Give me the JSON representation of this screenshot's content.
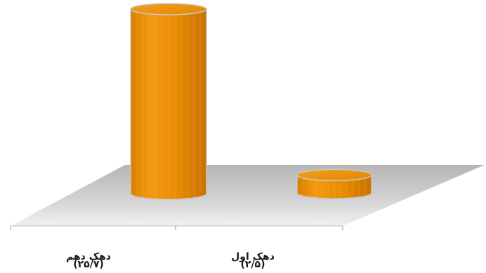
{
  "chart_data": {
    "type": "bar",
    "shape": "3d-cylinder",
    "categories": [
      "دهک دهم",
      "دهک اول"
    ],
    "value_labels": [
      "(۲۵/۷)",
      "(۲/۵)"
    ],
    "values": [
      25.7,
      2.5
    ],
    "ylim": [
      0,
      25.7
    ],
    "grid": false,
    "legend": "none",
    "bar_color": "#ee8f02",
    "bar_outline": "#c8c8c8",
    "floor_color": "#c9c9c9"
  }
}
